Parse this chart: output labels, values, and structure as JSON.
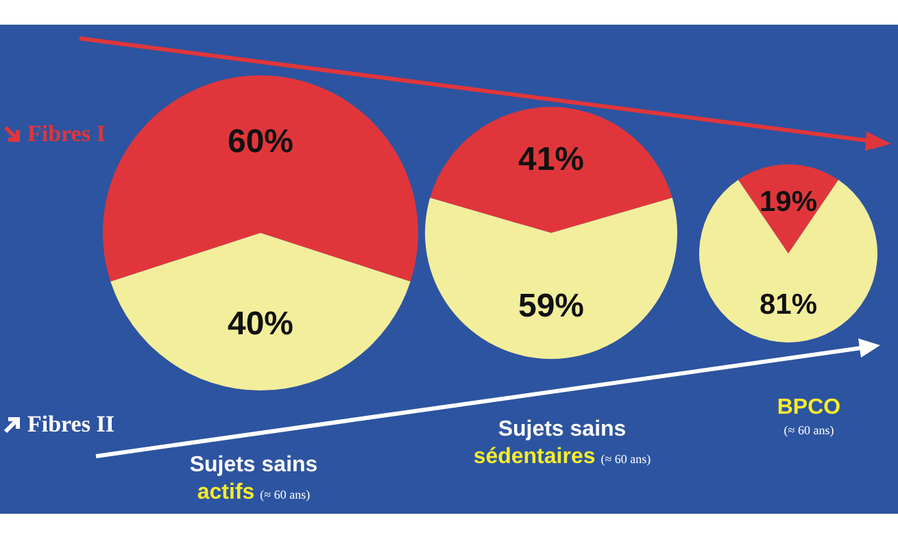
{
  "chart_data": [
    {
      "type": "pie",
      "title": "Sujets sains",
      "subtitle": "actifs",
      "annotations": [
        "(≈ 60 ans)"
      ],
      "categories": [
        "Fibres I",
        "Fibres II"
      ],
      "values": [
        60,
        40
      ],
      "value_labels": [
        "60%",
        "40%"
      ],
      "colors": [
        "#e0363b",
        "#f2ee9c"
      ],
      "legend": "left"
    },
    {
      "type": "pie",
      "title": "Sujets sains",
      "subtitle": "sédentaires",
      "annotations": [
        "(≈ 60 ans)"
      ],
      "categories": [
        null,
        null
      ],
      "values": [
        41,
        59
      ],
      "value_labels": [
        "41%",
        "59%"
      ],
      "colors": [
        "#e0363b",
        "#f2ee9c"
      ]
    },
    {
      "type": "pie",
      "subtitle": "BPCO",
      "annotations": [
        "(≈ 60 ans)"
      ],
      "categories": [
        null,
        null
      ],
      "values": [
        19,
        81
      ],
      "value_labels": [
        "19%",
        "81%"
      ],
      "colors": [
        "#e0363b",
        "#f2ee9c"
      ]
    }
  ]
}
